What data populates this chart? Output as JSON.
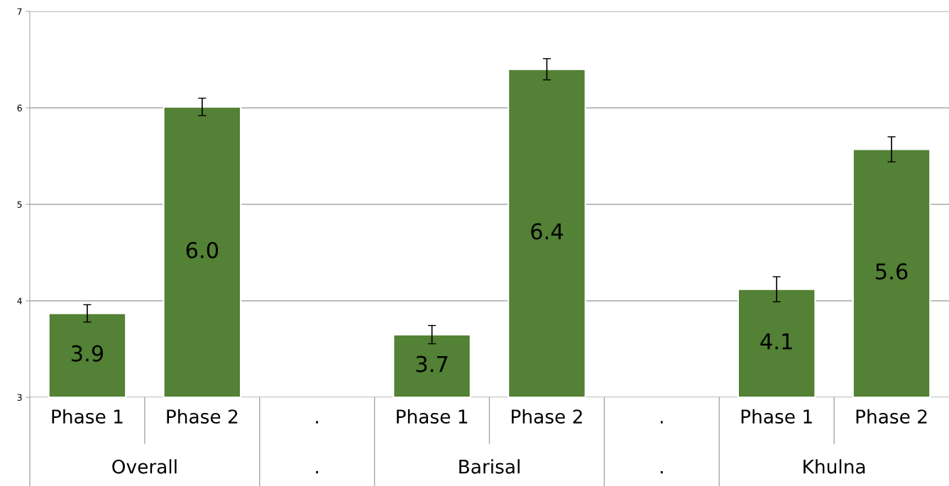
{
  "chart_data": {
    "type": "bar",
    "categories": [
      "Phase 1",
      "Phase 2",
      ".",
      "Phase 1",
      "Phase 2",
      ".",
      "Phase 1",
      "Phase 2"
    ],
    "values": [
      3.87,
      6.01,
      null,
      3.65,
      6.4,
      null,
      4.12,
      5.57
    ],
    "errors": [
      0.09,
      0.09,
      null,
      0.095,
      0.11,
      null,
      0.13,
      0.13
    ],
    "value_labels": [
      "3.9",
      "6.0",
      null,
      "3.7",
      "6.4",
      null,
      "4.1",
      "5.6"
    ],
    "color": "#538135",
    "ylim": [
      3,
      7
    ],
    "yticks": [
      3,
      4,
      5,
      6,
      7
    ],
    "grid": "y",
    "legend": false,
    "annotations": [
      "Overall",
      ".",
      "Barisal",
      ".",
      "Khulna"
    ]
  }
}
